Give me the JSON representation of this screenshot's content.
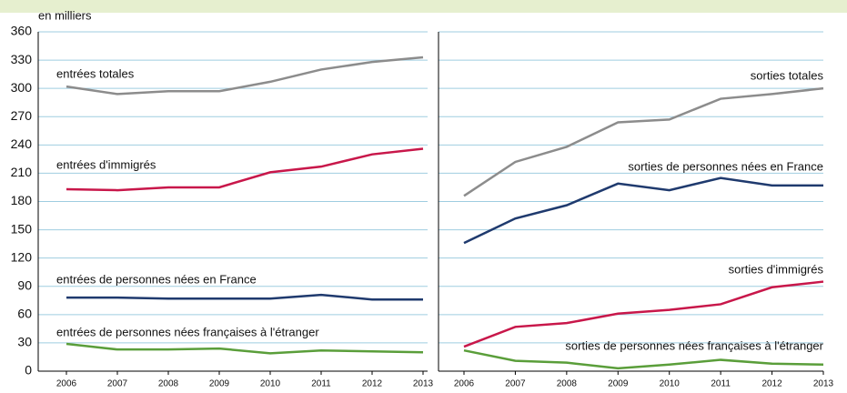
{
  "chart_data": [
    {
      "type": "line",
      "ylabel": "en milliers",
      "categories": [
        "2006",
        "2007",
        "2008",
        "2009",
        "2010",
        "2011",
        "2012",
        "2013"
      ],
      "ylim": [
        0,
        360
      ],
      "yticks": [
        0,
        30,
        60,
        90,
        120,
        150,
        180,
        210,
        240,
        270,
        300,
        330,
        360
      ],
      "grid": true,
      "series": [
        {
          "name": "entrées totales",
          "color": "#8c8c8c",
          "values": [
            302,
            294,
            297,
            297,
            307,
            320,
            328,
            333
          ]
        },
        {
          "name": "entrées d'immigrés",
          "color": "#c8174a",
          "values": [
            193,
            192,
            195,
            195,
            211,
            217,
            230,
            236
          ]
        },
        {
          "name": "entrées de personnes nées en France",
          "color": "#1f3a6e",
          "values": [
            78,
            78,
            77,
            77,
            77,
            81,
            76,
            76
          ]
        },
        {
          "name": "entrées de personnes nées françaises à l'étranger",
          "color": "#5a9e3a",
          "values": [
            29,
            23,
            23,
            24,
            19,
            22,
            21,
            20
          ]
        }
      ]
    },
    {
      "type": "line",
      "categories": [
        "2006",
        "2007",
        "2008",
        "2009",
        "2010",
        "2011",
        "2012",
        "2013"
      ],
      "series": [
        {
          "name": "sorties totales",
          "color": "#8c8c8c",
          "values": [
            186,
            222,
            238,
            264,
            267,
            289,
            294,
            300
          ]
        },
        {
          "name": "sorties de personnes nées en France",
          "color": "#1f3a6e",
          "values": [
            136,
            162,
            176,
            199,
            192,
            205,
            197,
            197
          ]
        },
        {
          "name": "sorties d'immigrés",
          "color": "#c8174a",
          "values": [
            26,
            47,
            51,
            61,
            65,
            71,
            89,
            95
          ]
        },
        {
          "name": "sorties de personnes nées françaises à l'étranger",
          "color": "#5a9e3a",
          "values": [
            22,
            11,
            9,
            3,
            7,
            12,
            8,
            7
          ]
        }
      ]
    }
  ]
}
